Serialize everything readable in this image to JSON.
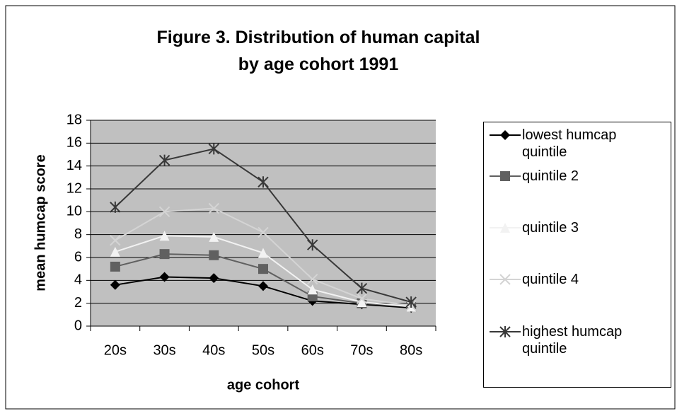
{
  "chart_data": {
    "type": "line",
    "title": "Figure 3.  Distribution of human capital\nby age cohort 1991",
    "xlabel": "age cohort",
    "ylabel": "mean humcap score",
    "categories": [
      "20s",
      "30s",
      "40s",
      "50s",
      "60s",
      "70s",
      "80s"
    ],
    "ylim": [
      0,
      18
    ],
    "yticks": [
      0,
      2,
      4,
      6,
      8,
      10,
      12,
      14,
      16,
      18
    ],
    "grid": true,
    "plot_background": "#c0c0c0",
    "legend": "right",
    "series": [
      {
        "name": "lowest humcap quintile",
        "color": "#000000",
        "marker": "diamond",
        "values": [
          3.6,
          4.3,
          4.2,
          3.5,
          2.2,
          1.9,
          1.6
        ]
      },
      {
        "name": "quintile 2",
        "color": "#606060",
        "marker": "square",
        "values": [
          5.2,
          6.3,
          6.2,
          5.0,
          2.6,
          2.0,
          1.7
        ]
      },
      {
        "name": "quintile 3",
        "color": "#f2f2f2",
        "marker": "triangle",
        "values": [
          6.5,
          7.9,
          7.8,
          6.4,
          3.2,
          2.1,
          1.7
        ]
      },
      {
        "name": "quintile 4",
        "color": "#d4d4d4",
        "marker": "x",
        "values": [
          7.5,
          10.0,
          10.3,
          8.2,
          4.1,
          2.4,
          1.8
        ]
      },
      {
        "name": "highest humcap quintile",
        "color": "#383838",
        "marker": "asterisk",
        "values": [
          10.4,
          14.5,
          15.5,
          12.6,
          7.1,
          3.3,
          2.1
        ]
      }
    ]
  }
}
